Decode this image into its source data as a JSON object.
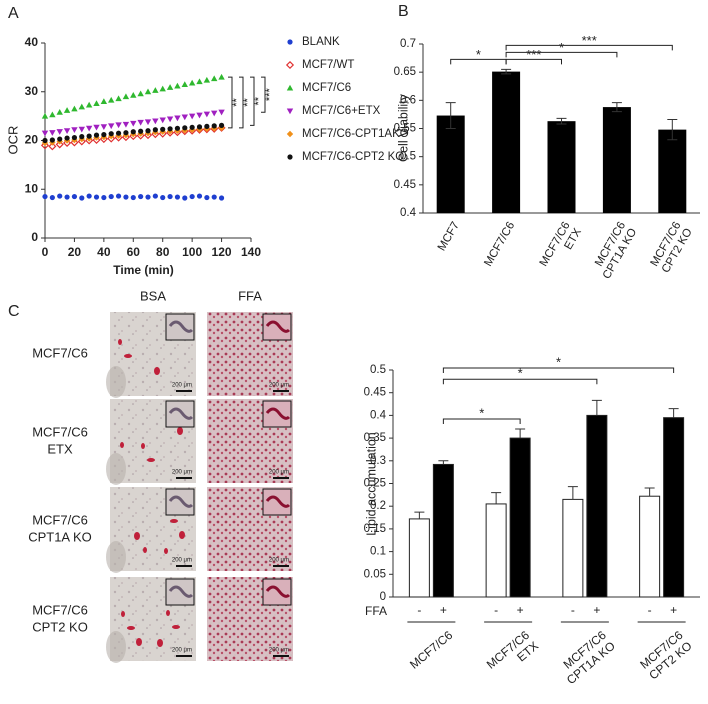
{
  "panel_labels": [
    "A",
    "B",
    "C"
  ],
  "chart_data": [
    {
      "type": "scatter",
      "xlabel": "Time (min)",
      "ylabel": "OCR",
      "x": [
        0,
        5,
        10,
        15,
        20,
        25,
        30,
        35,
        40,
        45,
        50,
        55,
        60,
        65,
        70,
        75,
        80,
        85,
        90,
        95,
        100,
        105,
        110,
        115,
        120
      ],
      "xlim": [
        0,
        140
      ],
      "xticks": [
        0,
        20,
        40,
        60,
        80,
        100,
        120,
        140
      ],
      "ylim": [
        0,
        40
      ],
      "yticks": [
        0,
        10,
        20,
        30,
        40
      ],
      "series": [
        {
          "name": "BLANK",
          "color": "#1f3fd0",
          "marker": "dot",
          "values": [
            8.5,
            8.3,
            8.6,
            8.4,
            8.5,
            8.2,
            8.6,
            8.4,
            8.3,
            8.5,
            8.6,
            8.4,
            8.3,
            8.5,
            8.4,
            8.6,
            8.3,
            8.5,
            8.4,
            8.2,
            8.5,
            8.6,
            8.3,
            8.4,
            8.2
          ]
        },
        {
          "name": "MCF7/WT",
          "color": "#e03030",
          "marker": "open-diamond",
          "values": [
            19.0,
            18.8,
            19.2,
            19.5,
            19.6,
            19.8,
            20.0,
            20.1,
            20.3,
            20.4,
            20.6,
            20.7,
            20.9,
            21.0,
            21.1,
            21.3,
            21.4,
            21.6,
            21.7,
            21.9,
            22.0,
            22.2,
            22.3,
            22.4,
            22.6
          ]
        },
        {
          "name": "MCF7/C6",
          "color": "#2fb82f",
          "marker": "triangle",
          "values": [
            25.0,
            25.3,
            25.8,
            26.2,
            26.5,
            26.9,
            27.3,
            27.6,
            28.0,
            28.3,
            28.6,
            29.0,
            29.3,
            29.6,
            30.0,
            30.3,
            30.6,
            30.9,
            31.2,
            31.5,
            31.8,
            32.1,
            32.4,
            32.7,
            33.0
          ]
        },
        {
          "name": "MCF7/C6+ETX",
          "color": "#a020c0",
          "marker": "down-triangle",
          "values": [
            21.5,
            21.6,
            21.8,
            22.0,
            22.2,
            22.3,
            22.5,
            22.7,
            22.8,
            23.0,
            23.2,
            23.3,
            23.5,
            23.7,
            23.8,
            24.0,
            24.2,
            24.4,
            24.6,
            24.8,
            25.0,
            25.2,
            25.4,
            25.6,
            25.8
          ]
        },
        {
          "name": "MCF7/C6-CPT1AKO",
          "color": "#f0901a",
          "marker": "diamond",
          "values": [
            19.5,
            19.6,
            19.8,
            20.0,
            20.1,
            20.3,
            20.4,
            20.6,
            20.7,
            20.9,
            21.0,
            21.1,
            21.3,
            21.4,
            21.5,
            21.7,
            21.8,
            21.9,
            22.0,
            22.1,
            22.2,
            22.3,
            22.4,
            22.5,
            22.6
          ]
        },
        {
          "name": "MCF7/C6-CPT2 KO",
          "color": "#111111",
          "marker": "dot",
          "values": [
            20.0,
            20.1,
            20.3,
            20.5,
            20.6,
            20.8,
            20.9,
            21.1,
            21.2,
            21.4,
            21.5,
            21.6,
            21.8,
            21.9,
            22.0,
            22.2,
            22.3,
            22.4,
            22.5,
            22.6,
            22.7,
            22.8,
            22.9,
            23.0,
            23.1
          ]
        }
      ],
      "annotations": [
        {
          "label": "**",
          "series": [
            2,
            1
          ]
        },
        {
          "label": "**",
          "series": [
            2,
            4
          ]
        },
        {
          "label": "**",
          "series": [
            2,
            5
          ]
        },
        {
          "label": "***",
          "series": [
            2,
            3
          ]
        }
      ]
    },
    {
      "type": "bar",
      "ylabel": "Cell Viability",
      "categories": [
        [
          "MCF7"
        ],
        [
          "MCF7/C6"
        ],
        [
          "MCF7/C6",
          "ETX"
        ],
        [
          "MCF7/C6",
          "CPT1A KO"
        ],
        [
          "MCF7/C6",
          "CPT2 KO"
        ]
      ],
      "values": [
        0.573,
        0.651,
        0.563,
        0.588,
        0.548
      ],
      "errors": [
        0.023,
        0.004,
        0.005,
        0.008,
        0.018
      ],
      "color": "#000000",
      "ylim": [
        0.4,
        0.7
      ],
      "yticks": [
        0.4,
        0.45,
        0.5,
        0.55,
        0.6,
        0.65,
        0.7
      ],
      "significance": [
        {
          "label": "*",
          "from": 0,
          "to": 1
        },
        {
          "label": "***",
          "from": 1,
          "to": 2
        },
        {
          "label": "*",
          "from": 1,
          "to": 3
        },
        {
          "label": "***",
          "from": 1,
          "to": 4
        }
      ]
    },
    {
      "type": "grouped-bar",
      "ylabel": "Lipid accumulation",
      "row_label": "FFA",
      "categories": [
        [
          "MCF7/C6"
        ],
        [
          "MCF7/C6",
          "ETX"
        ],
        [
          "MCF7/C6",
          "CPT1A KO"
        ],
        [
          "MCF7/C6",
          "CPT2 KO"
        ]
      ],
      "series": [
        {
          "name": "-",
          "color": "#ffffff",
          "values": [
            0.172,
            0.205,
            0.215,
            0.222
          ],
          "errors": [
            0.015,
            0.025,
            0.028,
            0.018
          ]
        },
        {
          "name": "+",
          "color": "#000000",
          "values": [
            0.292,
            0.35,
            0.4,
            0.395
          ],
          "errors": [
            0.008,
            0.02,
            0.033,
            0.02
          ]
        }
      ],
      "ylim": [
        0,
        0.5
      ],
      "yticks": [
        0,
        0.05,
        0.1,
        0.15,
        0.2,
        0.25,
        0.3,
        0.35,
        0.4,
        0.45,
        0.5
      ],
      "significance": [
        {
          "label": "*",
          "from": 0,
          "to": 1
        },
        {
          "label": "*",
          "from": 0,
          "to": 2
        },
        {
          "label": "*",
          "from": 0,
          "to": 3
        }
      ]
    }
  ],
  "micrographs": {
    "columns": [
      "BSA",
      "FFA"
    ],
    "rows": [
      [
        "MCF7/C6"
      ],
      [
        "MCF7/C6",
        "ETX"
      ],
      [
        "MCF7/C6",
        "CPT1A KO"
      ],
      [
        "MCF7/C6",
        "CPT2 KO"
      ]
    ],
    "scale_bar": "200 μm"
  }
}
